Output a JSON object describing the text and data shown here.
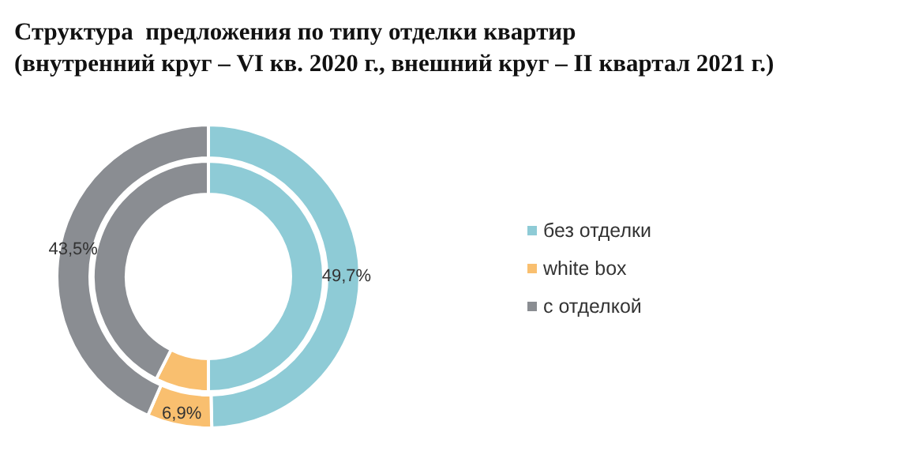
{
  "chart_data": {
    "type": "donut",
    "title": "Структура  предложения по типу отделки квартир\n(внутренний круг – VI кв. 2020 г., внешний круг – II квартал 2021 г.)",
    "categories": [
      "без отделки",
      "white box",
      "с отделкой"
    ],
    "colors": [
      "#8ecbd6",
      "#f9bf6f",
      "#8a8d92"
    ],
    "series": [
      {
        "values": [
          50,
          7.5,
          42.5
        ]
      },
      {
        "values": [
          49.7,
          6.9,
          43.5
        ],
        "value_labels": [
          "49,7%",
          "6,9%",
          "43,5%"
        ]
      }
    ],
    "legend": "right"
  }
}
